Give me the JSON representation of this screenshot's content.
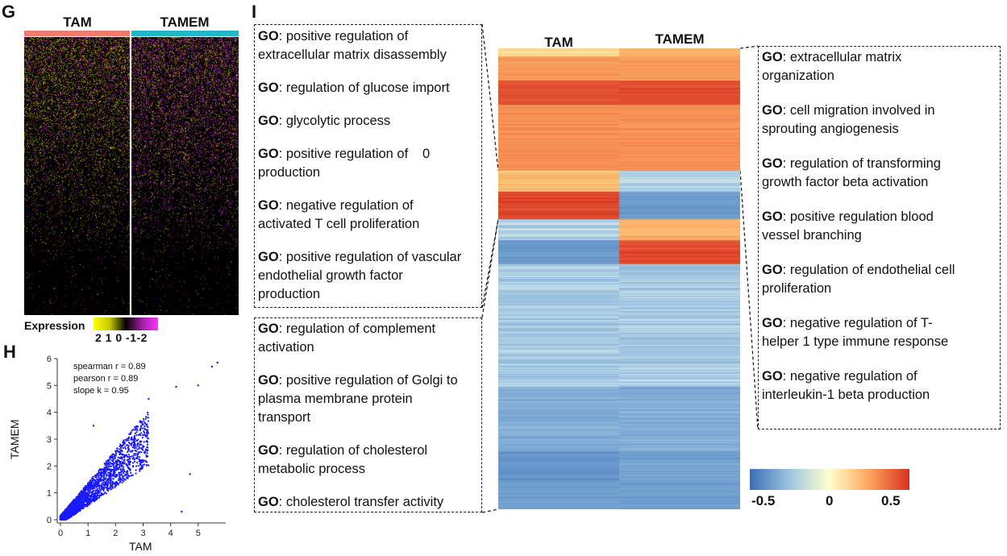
{
  "panels": {
    "G": "G",
    "H": "H",
    "I": "I"
  },
  "heatmap_g": {
    "groups": [
      "TAM",
      "TAMEM"
    ],
    "group_colors": [
      "#f07a6e",
      "#20b8c4"
    ],
    "legend_title": "Expression",
    "legend_ticks": "2 1 0 -1-2",
    "low_color": "#ffff00",
    "mid_color": "#000000",
    "high_color": "#ff33ff"
  },
  "scatter_h": {
    "stats": [
      "spearman r =  0.89",
      "pearson r =  0.89",
      "slope k =  0.95"
    ],
    "xlabel": "TAM",
    "ylabel": "TAMEM",
    "xticks": [
      "0",
      "1",
      "2",
      "3",
      "4",
      "5"
    ],
    "yticks": [
      "0",
      "1",
      "2",
      "3",
      "4",
      "5",
      "6"
    ],
    "xlim": [
      0,
      6
    ],
    "ylim": [
      0,
      6
    ],
    "point_color": "#1a1aff"
  },
  "heatmap_i": {
    "columns": [
      "TAM",
      "TAMEM"
    ],
    "colorbar_ticks": [
      "-0.5",
      "0",
      "0.5"
    ],
    "colors": [
      "#3b6db5",
      "#ffffcc",
      "#d7301f"
    ]
  },
  "go_left_top": [
    {
      "prefix": "GO",
      "text": ": positive regulation of extracellular matrix disassembly",
      "lines": [
        "positive regulation of",
        "extracellular matrix disassembly"
      ]
    },
    {
      "prefix": "GO",
      "lines": [
        "regulation of glucose import"
      ]
    },
    {
      "prefix": "GO",
      "lines": [
        "glycolytic process"
      ]
    },
    {
      "prefix": "GO",
      "lines": [
        "positive regulation of     0",
        "production"
      ]
    },
    {
      "prefix": "GO",
      "lines": [
        "negative regulation of",
        "activated T cell proliferation"
      ]
    },
    {
      "prefix": "GO",
      "lines": [
        "positive regulation of vascular",
        "endothelial growth factor",
        "production"
      ]
    }
  ],
  "go_left_bottom": [
    {
      "prefix": "GO",
      "lines": [
        "regulation of complement",
        "activation"
      ]
    },
    {
      "prefix": "GO",
      "lines": [
        "positive regulation of Golgi to",
        "plasma membrane protein",
        "transport"
      ]
    },
    {
      "prefix": "GO",
      "lines": [
        "regulation of cholesterol",
        "metabolic process"
      ]
    },
    {
      "prefix": "GO",
      "lines": [
        "cholesterol transfer activity"
      ]
    }
  ],
  "go_right": [
    {
      "prefix": "GO",
      "lines": [
        "extracellular matrix",
        "organization"
      ]
    },
    {
      "prefix": "GO",
      "lines": [
        "cell migration involved in",
        "sprouting angiogenesis"
      ]
    },
    {
      "prefix": "GO",
      "lines": [
        "regulation of transforming",
        "growth factor beta activation"
      ]
    },
    {
      "prefix": "GO",
      "lines": [
        "positive regulation blood",
        "vessel branching"
      ]
    },
    {
      "prefix": "GO",
      "lines": [
        "regulation of endothelial cell",
        "proliferation"
      ]
    },
    {
      "prefix": "GO",
      "lines": [
        "negative regulation of T-",
        "helper 1 type immune response"
      ]
    },
    {
      "prefix": "GO",
      "lines": [
        "negative regulation of",
        "interleukin-1 beta production"
      ]
    }
  ]
}
